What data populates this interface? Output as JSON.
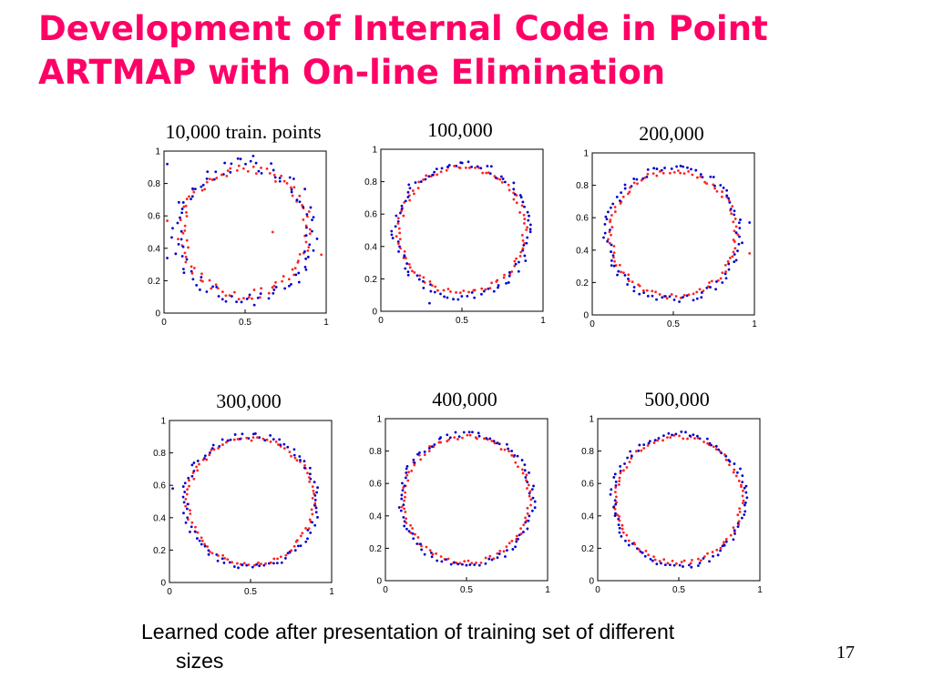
{
  "title": {
    "line1": "Development of Internal Code in Point",
    "line2": "ARTMAP with On-line Elimination"
  },
  "caption": {
    "line1": "Learned code after presentation of training set of different",
    "line2": "sizes"
  },
  "page_number": "17",
  "colors": {
    "title": "#ff0066",
    "series_blue": "#0000cc",
    "series_red": "#ff2222"
  },
  "chart_data": [
    {
      "type": "scatter",
      "label": "10,000 train. points",
      "center": [
        0.5,
        0.5
      ],
      "radius": 0.4,
      "spread": 0.04,
      "outliers": [
        [
          0.02,
          0.92
        ],
        [
          0.02,
          0.57
        ],
        [
          0.02,
          0.34
        ],
        [
          0.67,
          0.5
        ],
        [
          0.55,
          0.97
        ],
        [
          0.97,
          0.36
        ]
      ],
      "xlim": [
        0,
        1
      ],
      "ylim": [
        0,
        1
      ],
      "xticks": [
        "0",
        "0.5",
        "1"
      ],
      "yticks": [
        "0",
        "0.2",
        "0.4",
        "0.6",
        "0.8",
        "1"
      ],
      "grid": false
    },
    {
      "type": "scatter",
      "label": "100,000",
      "center": [
        0.5,
        0.5
      ],
      "radius": 0.4,
      "spread": 0.025,
      "outliers": [
        [
          0.3,
          0.05
        ]
      ],
      "xlim": [
        0,
        1
      ],
      "ylim": [
        0,
        1
      ],
      "xticks": [
        "0",
        "0.5",
        "1"
      ],
      "yticks": [
        "0",
        "0.2",
        "0.4",
        "0.6",
        "0.8",
        "1"
      ],
      "grid": false
    },
    {
      "type": "scatter",
      "label": "200,000",
      "center": [
        0.5,
        0.5
      ],
      "radius": 0.4,
      "spread": 0.022,
      "outliers": [
        [
          0.97,
          0.57
        ],
        [
          0.97,
          0.38
        ]
      ],
      "xlim": [
        0,
        1
      ],
      "ylim": [
        0,
        1
      ],
      "xticks": [
        "0",
        "0.5",
        "1"
      ],
      "yticks": [
        "0",
        "0.2",
        "0.4",
        "0.6",
        "0.8",
        "1"
      ],
      "grid": false
    },
    {
      "type": "scatter",
      "label": "300,000",
      "center": [
        0.5,
        0.5
      ],
      "radius": 0.4,
      "spread": 0.02,
      "outliers": [
        [
          0.02,
          0.58
        ]
      ],
      "xlim": [
        0,
        1
      ],
      "ylim": [
        0,
        1
      ],
      "xticks": [
        "0",
        "0.5",
        "1"
      ],
      "yticks": [
        "0",
        "0.2",
        "0.4",
        "0.6",
        "0.8",
        "1"
      ],
      "grid": false
    },
    {
      "type": "scatter",
      "label": "400,000",
      "center": [
        0.5,
        0.5
      ],
      "radius": 0.4,
      "spread": 0.018,
      "outliers": [],
      "xlim": [
        0,
        1
      ],
      "ylim": [
        0,
        1
      ],
      "xticks": [
        "0",
        "0.5",
        "1"
      ],
      "yticks": [
        "0",
        "0.2",
        "0.4",
        "0.6",
        "0.8",
        "1"
      ],
      "grid": false
    },
    {
      "type": "scatter",
      "label": "500,000",
      "center": [
        0.5,
        0.5
      ],
      "radius": 0.4,
      "spread": 0.018,
      "outliers": [],
      "xlim": [
        0,
        1
      ],
      "ylim": [
        0,
        1
      ],
      "xticks": [
        "0",
        "0.5",
        "1"
      ],
      "yticks": [
        "0",
        "0.2",
        "0.4",
        "0.6",
        "0.8",
        "1"
      ],
      "grid": false
    }
  ]
}
